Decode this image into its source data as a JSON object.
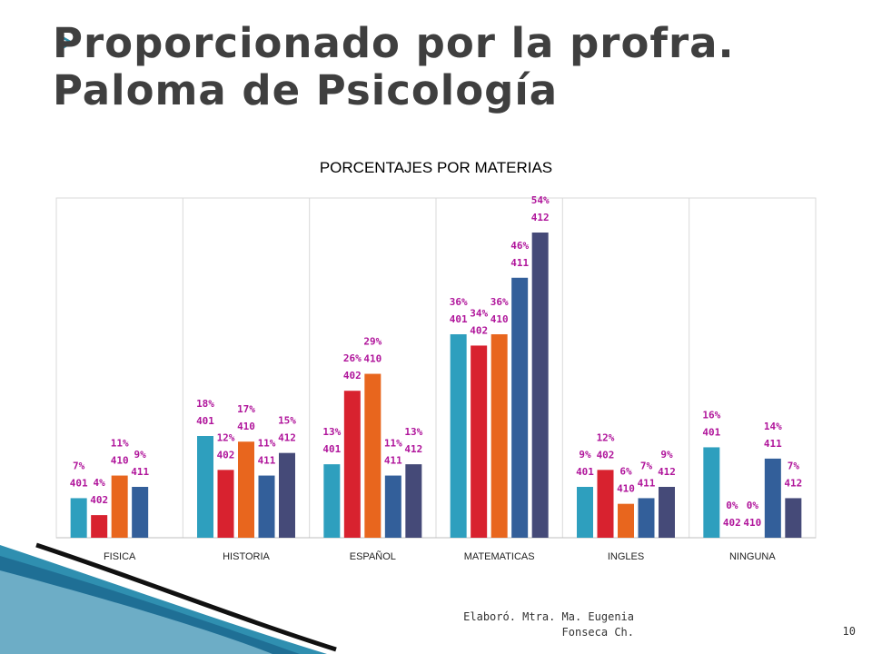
{
  "slide": {
    "title_line1": "Proporcionado por la profra.",
    "title_line2": "Paloma de Psicología",
    "footer_line1": "Elaboró. Mtra. Ma. Eugenia",
    "footer_line2": "Fonseca Ch.",
    "page_number": "10"
  },
  "colors": {
    "title": "#3f3f3f",
    "label": "#b0159b",
    "bullet_arrow": "#2c8aa6",
    "series": [
      "#2e9fbe",
      "#d8222f",
      "#e8661e",
      "#335f9a",
      "#454a78"
    ]
  },
  "chart_data": {
    "type": "bar",
    "title": "PORCENTAJES POR MATERIAS",
    "xlabel": "",
    "ylabel": "",
    "ylim": [
      0,
      54
    ],
    "grid": "vertical category separators",
    "legend": "none",
    "categories": [
      "FISICA",
      "HISTORIA",
      "ESPAÑOL",
      "MATEMATICAS",
      "INGLES",
      "NINGUNA"
    ],
    "series": [
      {
        "name": "401",
        "values": [
          7,
          18,
          13,
          36,
          9,
          16
        ]
      },
      {
        "name": "402",
        "values": [
          4,
          12,
          26,
          34,
          12,
          0
        ]
      },
      {
        "name": "410",
        "values": [
          11,
          17,
          29,
          36,
          6,
          0
        ]
      },
      {
        "name": "411",
        "values": [
          9,
          11,
          11,
          46,
          7,
          14
        ]
      },
      {
        "name": "412",
        "values": [
          null,
          15,
          13,
          54,
          9,
          7
        ]
      }
    ]
  }
}
